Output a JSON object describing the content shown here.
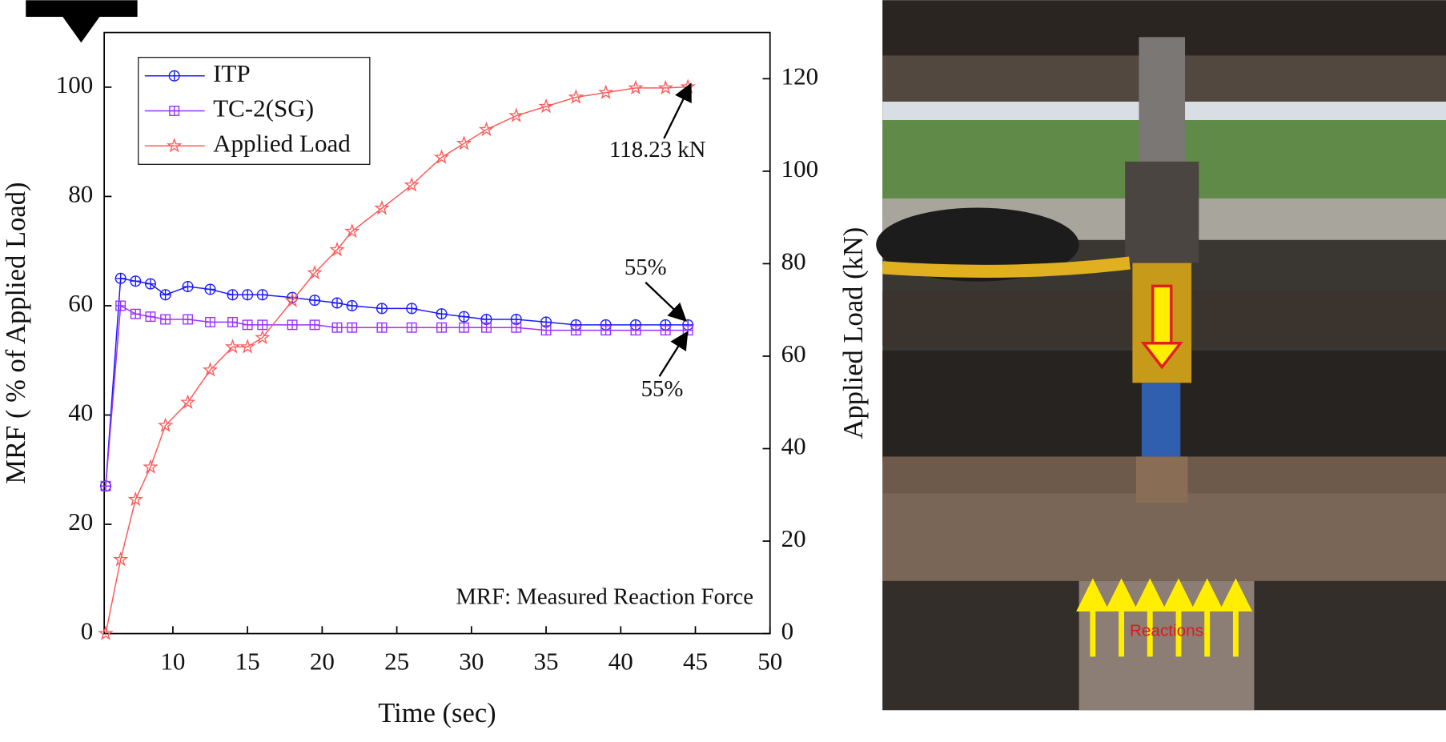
{
  "chart_data": {
    "type": "line",
    "x_label": "Time (sec)",
    "y_label": "MRF ( % of Applied Load)",
    "y2_label": "Applied Load (kN)",
    "x": [
      5.5,
      6.5,
      7.5,
      8.5,
      9.5,
      11,
      12.5,
      14,
      15,
      16,
      18,
      19.5,
      21,
      22,
      24,
      26,
      28,
      29.5,
      31,
      33,
      35,
      37,
      39,
      41,
      43,
      44.5
    ],
    "series": [
      {
        "name": "ITP",
        "color": "#1a1aff",
        "marker": "circle-plus",
        "values": [
          27,
          65,
          64.5,
          64,
          62,
          63.5,
          63,
          62,
          62,
          62,
          61.5,
          61,
          60.5,
          60,
          59.5,
          59.5,
          58.5,
          58,
          57.5,
          57.5,
          57,
          56.5,
          56.5,
          56.5,
          56.5,
          56.5
        ]
      },
      {
        "name": "TC-2(SG)",
        "color": "#9b30ff",
        "marker": "square-plus",
        "values": [
          27,
          60,
          58.5,
          58,
          57.5,
          57.5,
          57,
          57,
          56.5,
          56.5,
          56.5,
          56.5,
          56,
          56,
          56,
          56,
          56,
          56,
          56,
          56,
          55.5,
          55.5,
          55.5,
          55.5,
          55.5,
          55.5
        ]
      },
      {
        "name": "Applied Load",
        "color": "#ff5a5a",
        "marker": "star",
        "axis": "y2",
        "values": [
          0,
          16,
          29,
          36,
          45,
          50,
          57,
          62,
          62,
          64,
          72,
          78,
          83,
          87,
          92,
          97,
          103,
          106,
          109,
          112,
          114,
          116,
          117,
          118,
          118,
          118.23
        ]
      }
    ],
    "xlim": [
      5.4,
      50
    ],
    "xticks": [
      10,
      15,
      20,
      25,
      30,
      35,
      40,
      45,
      50
    ],
    "ylim": [
      0,
      110
    ],
    "yticks": [
      0,
      20,
      40,
      60,
      80,
      100
    ],
    "y2lim": [
      0,
      130
    ],
    "y2ticks": [
      0,
      20,
      40,
      60,
      80,
      100,
      120
    ],
    "legend": "upper-left",
    "annotations": [
      "118.23 kN",
      "55%",
      "55%",
      "MRF: Measured Reaction Force"
    ]
  },
  "photo": {
    "label": "Reactions"
  }
}
